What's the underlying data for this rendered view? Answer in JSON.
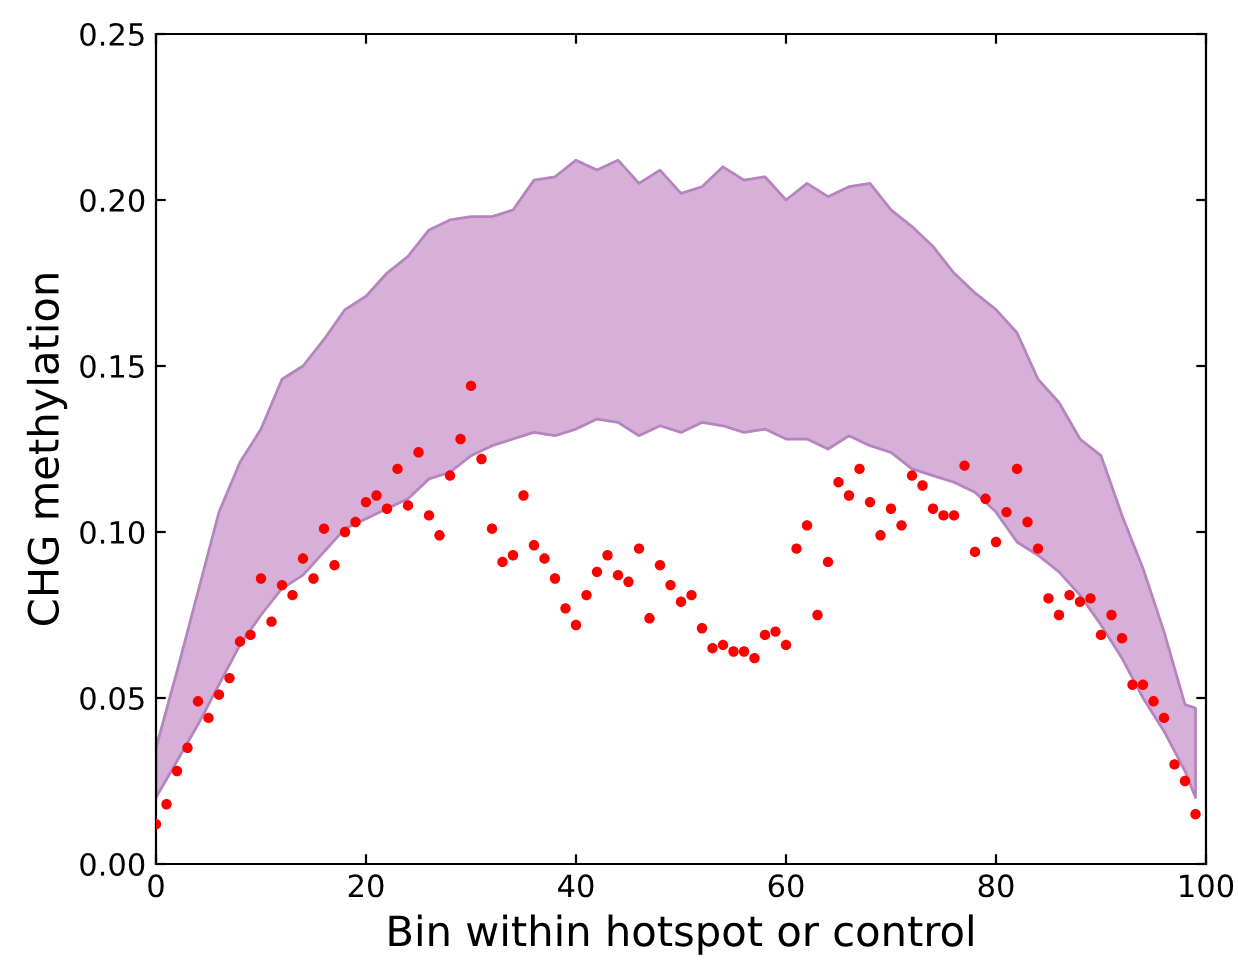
{
  "chart_data": {
    "type": "scatter",
    "xlabel": "Bin within hotspot or control",
    "ylabel": "CHG methylation",
    "xlim": [
      0,
      100
    ],
    "xticks": [
      0,
      20,
      40,
      60,
      80,
      100
    ],
    "ylim": [
      0,
      0.25
    ],
    "yticks": [
      {
        "value": 0,
        "label": "0.00"
      },
      {
        "value": 0.05,
        "label": "0.05"
      },
      {
        "value": 0.1,
        "label": "0.10"
      },
      {
        "value": 0.15,
        "label": "0.15"
      },
      {
        "value": 0.2,
        "label": "0.20"
      },
      {
        "value": 0.25,
        "label": "0.25"
      }
    ],
    "grid": false,
    "marker": "circle",
    "series": [
      {
        "type": "area",
        "color": "#d6b0d8",
        "values": [
          null,
          null,
          null,
          null,
          null,
          null,
          null,
          null,
          null,
          null,
          null,
          null,
          null,
          null,
          null,
          null,
          null,
          null,
          null,
          null,
          null,
          null,
          null,
          null,
          null,
          null,
          null,
          null,
          null,
          null,
          null,
          null,
          null,
          null,
          null,
          null,
          null,
          null,
          null,
          null,
          null,
          null,
          null,
          null,
          null,
          null,
          null,
          null,
          null,
          null,
          null
        ],
        "x": [
          0,
          2,
          4,
          6,
          8,
          10,
          12,
          14,
          16,
          18,
          20,
          22,
          24,
          26,
          28,
          30,
          32,
          34,
          36,
          38,
          40,
          42,
          44,
          46,
          48,
          50,
          52,
          54,
          56,
          58,
          60,
          62,
          64,
          66,
          68,
          70,
          72,
          74,
          76,
          78,
          80,
          82,
          84,
          86,
          88,
          90,
          92,
          94,
          96,
          98,
          99
        ],
        "upper": [
          0.035,
          0.058,
          0.082,
          0.106,
          0.121,
          0.131,
          0.146,
          0.15,
          0.158,
          0.167,
          0.171,
          0.178,
          0.183,
          0.191,
          0.194,
          0.195,
          0.195,
          0.197,
          0.206,
          0.207,
          0.212,
          0.209,
          0.212,
          0.205,
          0.209,
          0.202,
          0.204,
          0.21,
          0.206,
          0.207,
          0.2,
          0.205,
          0.201,
          0.204,
          0.205,
          0.197,
          0.192,
          0.186,
          0.178,
          0.172,
          0.167,
          0.16,
          0.146,
          0.139,
          0.128,
          0.123,
          0.105,
          0.089,
          0.07,
          0.048,
          0.047
        ],
        "lower": [
          0.02,
          0.031,
          0.042,
          0.054,
          0.066,
          0.075,
          0.083,
          0.087,
          0.094,
          0.101,
          0.104,
          0.107,
          0.11,
          0.116,
          0.118,
          0.123,
          0.126,
          0.128,
          0.13,
          0.129,
          0.131,
          0.134,
          0.133,
          0.129,
          0.132,
          0.13,
          0.133,
          0.132,
          0.13,
          0.131,
          0.128,
          0.128,
          0.125,
          0.129,
          0.126,
          0.124,
          0.119,
          0.117,
          0.115,
          0.112,
          0.106,
          0.097,
          0.093,
          0.088,
          0.081,
          0.072,
          0.062,
          0.05,
          0.04,
          0.028,
          0.02
        ]
      },
      {
        "color": "#ff0000",
        "x": [
          0,
          1,
          2,
          3,
          4,
          5,
          6,
          7,
          8,
          9,
          10,
          11,
          12,
          13,
          14,
          15,
          16,
          17,
          18,
          19,
          20,
          21,
          22,
          23,
          24,
          25,
          26,
          27,
          28,
          29,
          30,
          31,
          32,
          33,
          34,
          35,
          36,
          37,
          38,
          39,
          40,
          41,
          42,
          43,
          44,
          45,
          46,
          47,
          48,
          49,
          50,
          51,
          52,
          53,
          54,
          55,
          56,
          57,
          58,
          59,
          60,
          61,
          62,
          63,
          64,
          65,
          66,
          67,
          68,
          69,
          70,
          71,
          72,
          73,
          74,
          75,
          76,
          77,
          78,
          79,
          80,
          81,
          82,
          83,
          84,
          85,
          86,
          87,
          88,
          89,
          90,
          91,
          92,
          93,
          94,
          95,
          96,
          97,
          98,
          99
        ],
        "values": [
          0.012,
          0.018,
          0.028,
          0.035,
          0.049,
          0.044,
          0.051,
          0.056,
          0.067,
          0.069,
          0.086,
          0.073,
          0.084,
          0.081,
          0.092,
          0.086,
          0.101,
          0.09,
          0.1,
          0.103,
          0.109,
          0.111,
          0.107,
          0.119,
          0.108,
          0.124,
          0.105,
          0.099,
          0.117,
          0.128,
          0.144,
          0.122,
          0.101,
          0.091,
          0.093,
          0.111,
          0.096,
          0.092,
          0.086,
          0.077,
          0.072,
          0.081,
          0.088,
          0.093,
          0.087,
          0.085,
          0.095,
          0.074,
          0.09,
          0.084,
          0.079,
          0.081,
          0.071,
          0.065,
          0.066,
          0.064,
          0.064,
          0.062,
          0.069,
          0.07,
          0.066,
          0.095,
          0.102,
          0.075,
          0.091,
          0.115,
          0.111,
          0.119,
          0.109,
          0.099,
          0.107,
          0.102,
          0.117,
          0.114,
          0.107,
          0.105,
          0.105,
          0.12,
          0.094,
          0.11,
          0.097,
          0.106,
          0.119,
          0.103,
          0.095,
          0.08,
          0.075,
          0.081,
          0.079,
          0.08,
          0.069,
          0.075,
          0.068,
          0.054,
          0.054,
          0.049,
          0.044,
          0.03,
          0.025,
          0.015
        ]
      }
    ]
  }
}
